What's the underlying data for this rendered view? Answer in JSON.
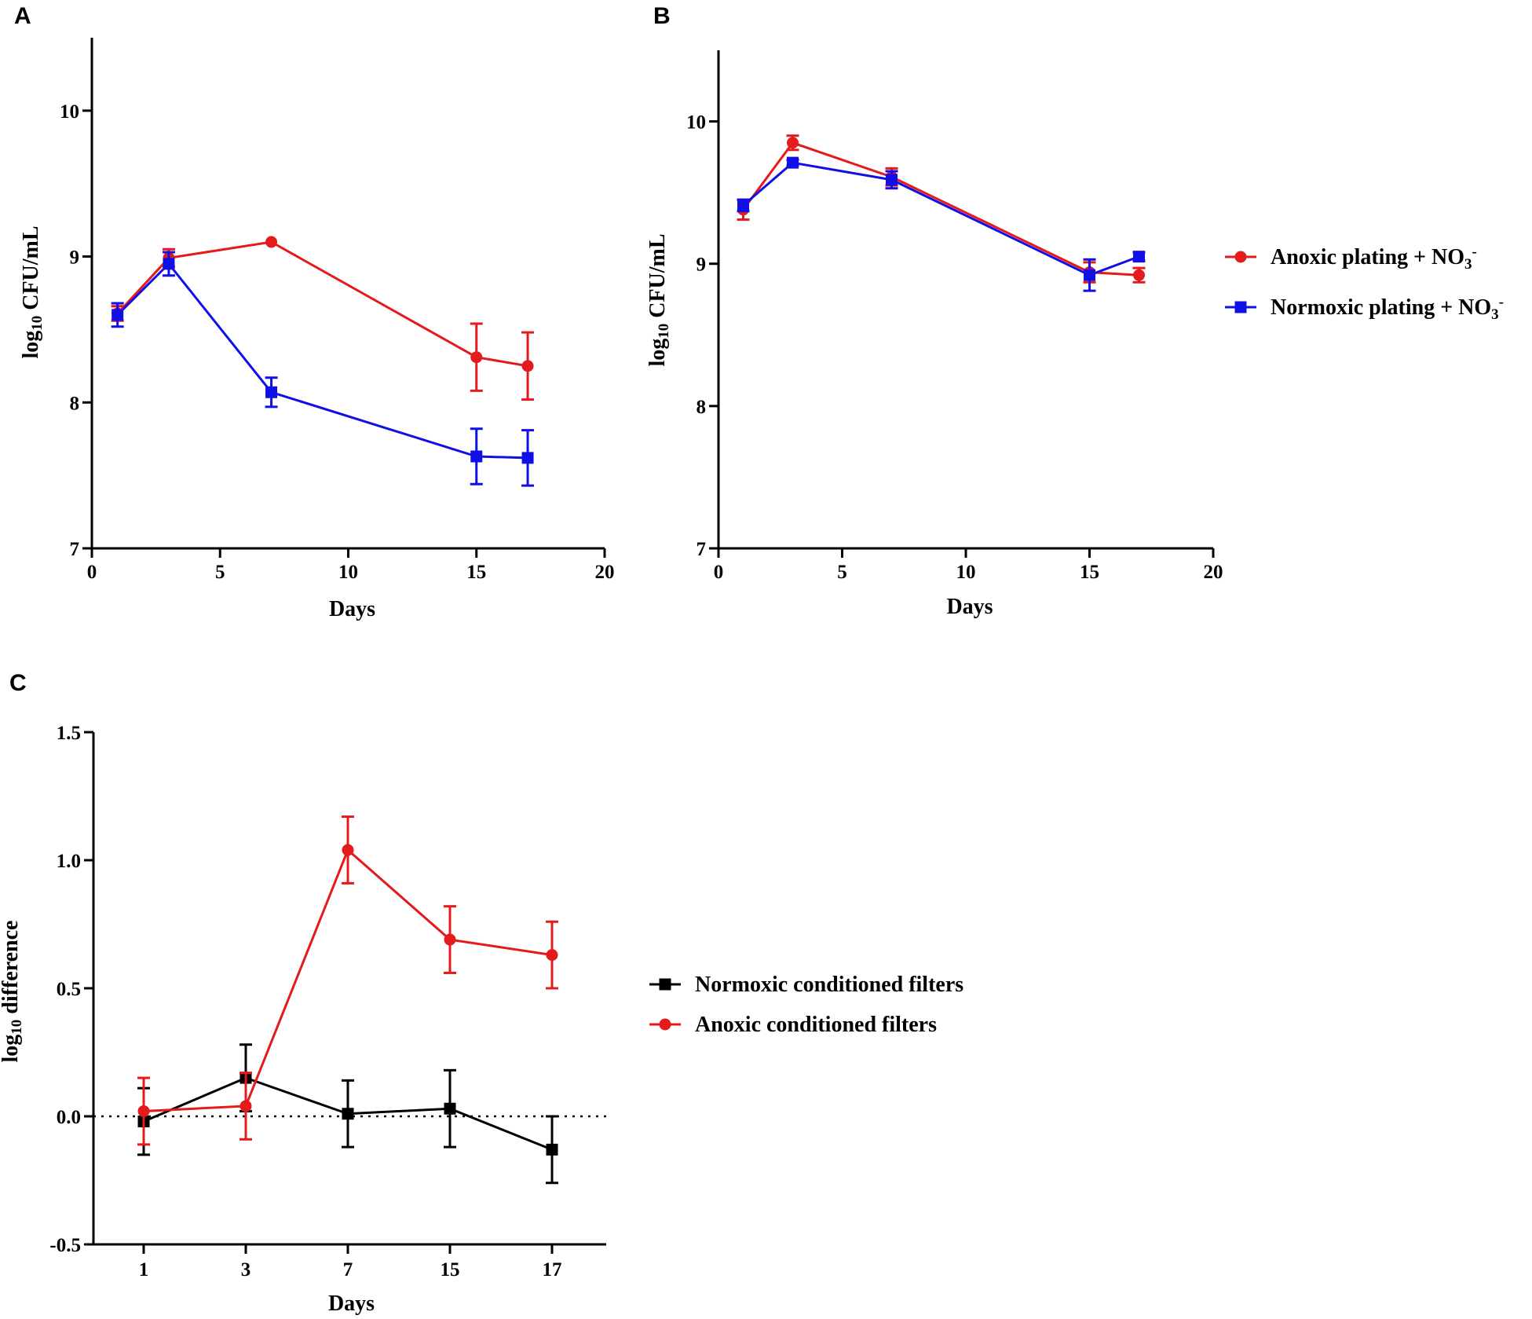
{
  "colors": {
    "red": "#e41a1c",
    "blue": "#1010e6",
    "black": "#000000",
    "axis": "#000000"
  },
  "chart_data": [
    {
      "id": "A",
      "panel_label": "A",
      "type": "line",
      "xlabel": "Days",
      "ylabel_base": "log",
      "ylabel_sub": "10",
      "ylabel_rest": " CFU/mL",
      "xlim": [
        0,
        20
      ],
      "ylim": [
        7,
        10.5
      ],
      "xticks": [
        0,
        5,
        10,
        15,
        20
      ],
      "xtick_labels": [
        "0",
        "5",
        "10",
        "15",
        "20"
      ],
      "yticks": [
        7,
        8,
        9,
        10
      ],
      "ytick_labels": [
        "7",
        "8",
        "9",
        "10"
      ],
      "series": [
        {
          "name": "Anoxic plating + NO3-",
          "color_key": "red",
          "marker": "circle",
          "x": [
            1,
            3,
            7,
            15,
            17
          ],
          "y": [
            8.61,
            8.99,
            9.1,
            8.31,
            8.25
          ],
          "err": [
            0.05,
            0.06,
            0.0,
            0.23,
            0.23
          ]
        },
        {
          "name": "Normoxic plating + NO3-",
          "color_key": "blue",
          "marker": "square",
          "x": [
            1,
            3,
            7,
            15,
            17
          ],
          "y": [
            8.6,
            8.95,
            8.07,
            7.63,
            7.62
          ],
          "err": [
            0.08,
            0.08,
            0.1,
            0.19,
            0.19
          ]
        }
      ]
    },
    {
      "id": "B",
      "panel_label": "B",
      "type": "line",
      "xlabel": "Days",
      "ylabel_base": "log",
      "ylabel_sub": "10",
      "ylabel_rest": " CFU/mL",
      "xlim": [
        0,
        20
      ],
      "ylim": [
        7,
        10.5
      ],
      "xticks": [
        0,
        5,
        10,
        15,
        20
      ],
      "xtick_labels": [
        "0",
        "5",
        "10",
        "15",
        "20"
      ],
      "yticks": [
        7,
        8,
        9,
        10
      ],
      "ytick_labels": [
        "7",
        "8",
        "9",
        "10"
      ],
      "series": [
        {
          "name": "Anoxic plating + NO3-",
          "color_key": "red",
          "marker": "circle",
          "x": [
            1,
            3,
            7,
            15,
            17
          ],
          "y": [
            9.38,
            9.85,
            9.61,
            8.94,
            8.92
          ],
          "err": [
            0.07,
            0.05,
            0.06,
            0.07,
            0.05
          ]
        },
        {
          "name": "Normoxic plating + NO3-",
          "color_key": "blue",
          "marker": "square",
          "x": [
            1,
            3,
            7,
            15,
            17
          ],
          "y": [
            9.41,
            9.71,
            9.59,
            8.92,
            9.05
          ],
          "err": [
            0.04,
            0.02,
            0.06,
            0.11,
            0.03
          ]
        }
      ],
      "legend": {
        "position": "right",
        "items": [
          {
            "label_main": "Anoxic plating + NO",
            "label_sub": "3",
            "label_sup": "-",
            "color_key": "red",
            "marker": "circle"
          },
          {
            "label_main": "Normoxic plating + NO",
            "label_sub": "3",
            "label_sup": "-",
            "color_key": "blue",
            "marker": "square"
          }
        ]
      }
    },
    {
      "id": "C",
      "panel_label": "C",
      "type": "line",
      "xlabel": "Days",
      "ylabel_base": "log",
      "ylabel_sub": "10",
      "ylabel_rest": " difference",
      "categories": [
        "1",
        "3",
        "7",
        "15",
        "17"
      ],
      "ylim": [
        -0.5,
        1.5
      ],
      "yticks": [
        -0.5,
        0.0,
        0.5,
        1.0,
        1.5
      ],
      "ytick_labels": [
        "-0.5",
        "0.0",
        "0.5",
        "1.0",
        "1.5"
      ],
      "reference_line": 0,
      "series": [
        {
          "name": "Normoxic conditioned filters",
          "color_key": "black",
          "marker": "square",
          "values": [
            -0.02,
            0.15,
            0.01,
            0.03,
            -0.13
          ],
          "err": [
            0.13,
            0.13,
            0.13,
            0.15,
            0.13
          ]
        },
        {
          "name": "Anoxic conditioned filters",
          "color_key": "red",
          "marker": "circle",
          "values": [
            0.02,
            0.04,
            1.04,
            0.69,
            0.63
          ],
          "err": [
            0.13,
            0.13,
            0.13,
            0.13,
            0.13
          ]
        }
      ],
      "legend": {
        "position": "right",
        "items": [
          {
            "label_main": "Normoxic conditioned filters",
            "color_key": "black",
            "marker": "square"
          },
          {
            "label_main": "Anoxic conditioned filters",
            "color_key": "red",
            "marker": "circle"
          }
        ]
      }
    }
  ]
}
